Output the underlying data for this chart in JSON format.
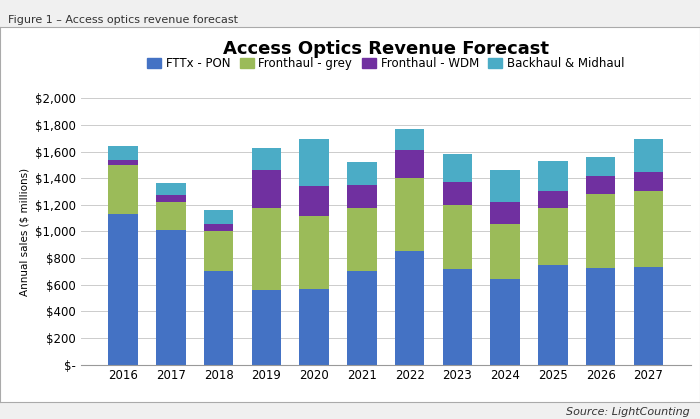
{
  "title": "Access Optics Revenue Forecast",
  "figure_label": "Figure 1 – Access optics revenue forecast",
  "source": "Source: LightCounting",
  "ylabel": "Annual sales ($ millions)",
  "years": [
    2016,
    2017,
    2018,
    2019,
    2020,
    2021,
    2022,
    2023,
    2024,
    2025,
    2026,
    2027
  ],
  "series": {
    "FTTx - PON": [
      1130,
      1010,
      700,
      560,
      570,
      700,
      855,
      720,
      640,
      745,
      725,
      735
    ],
    "Fronthaul - grey": [
      370,
      215,
      300,
      620,
      550,
      480,
      550,
      480,
      420,
      430,
      560,
      570
    ],
    "Fronthaul - WDM": [
      40,
      50,
      60,
      280,
      220,
      170,
      210,
      170,
      165,
      130,
      130,
      145
    ],
    "Backhaul & Midhaul": [
      100,
      90,
      100,
      170,
      355,
      170,
      155,
      215,
      235,
      225,
      145,
      245
    ]
  },
  "colors": {
    "FTTx - PON": "#4472C4",
    "Fronthaul - grey": "#9BBB59",
    "Fronthaul - WDM": "#7030A0",
    "Backhaul & Midhaul": "#4BACC6"
  },
  "ylim": [
    0,
    2000
  ],
  "yticks": [
    0,
    200,
    400,
    600,
    800,
    1000,
    1200,
    1400,
    1600,
    1800,
    2000
  ],
  "ytick_labels": [
    "$-",
    "$200",
    "$400",
    "$600",
    "$800",
    "$1,000",
    "$1,200",
    "$1,400",
    "$1,600",
    "$1,800",
    "$2,000"
  ],
  "background_color": "#F0F0F0",
  "chart_bg_color": "#FFFFFF",
  "grid_color": "#CCCCCC",
  "title_fontsize": 13,
  "legend_fontsize": 8.5,
  "axis_fontsize": 8.5,
  "label_fontsize": 7.5,
  "bar_width": 0.62
}
